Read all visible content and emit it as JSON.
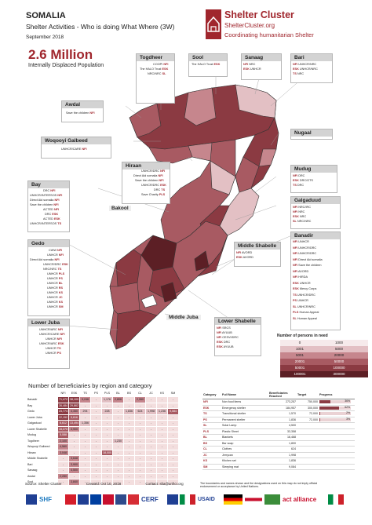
{
  "header": {
    "country": "SOMALIA",
    "subtitle": "Shelter Activities - Who is doing What Where (3W)",
    "date": "September 2018"
  },
  "logo": {
    "name": "Shelter Cluster",
    "url": "ShelterCluster.org",
    "tagline": "Coordinating humanitarian Shelter",
    "color": "#a0262d"
  },
  "headline": {
    "figure": "2.6 Million",
    "label": "Internally Displaced Population"
  },
  "regions": {
    "togdheer": {
      "name": "Togdheer",
      "orgs": [
        {
          "org": "COOPI",
          "cat": "NFI"
        },
        {
          "org": "The HALO Trust",
          "cat": "ESK"
        },
        {
          "org": "NRC/NRC",
          "cat": "SL"
        }
      ]
    },
    "sool": {
      "name": "Sool",
      "orgs": [
        {
          "org": "The HALO Trust",
          "cat": "ESK"
        }
      ]
    },
    "sanaag": {
      "name": "Sanaag",
      "orgs": [
        {
          "org": "NRC",
          "cat": "NFI"
        },
        {
          "org": "UNHCR",
          "cat": "ESK"
        }
      ]
    },
    "bari": {
      "name": "Bari",
      "orgs": [
        {
          "org": "UNHCR/NRC",
          "cat": "NFI"
        },
        {
          "org": "UNHCR/NRC",
          "cat": "ESK"
        },
        {
          "org": "NRC",
          "cat": "TS"
        }
      ]
    },
    "awdal": {
      "name": "Awdal",
      "orgs": [
        {
          "org": "Save the children",
          "cat": "NFI"
        }
      ]
    },
    "woqooyi": {
      "name": "Woqooyi Galbeed",
      "orgs": [
        {
          "org": "UNHCR/CARE",
          "cat": "NFI"
        }
      ]
    },
    "nugaal": {
      "name": "Nugaal",
      "orgs": []
    },
    "hiraan": {
      "name": "Hiraan",
      "orgs": [
        {
          "org": "UNHCR/DRC",
          "cat": "NFI"
        },
        {
          "org": "Direct Aid somalia",
          "cat": "NFI"
        },
        {
          "org": "Save the children",
          "cat": "NFI"
        },
        {
          "org": "UNHCR/DRC",
          "cat": "ESK"
        },
        {
          "org": "DRC",
          "cat": "TS"
        },
        {
          "org": "Save Charity",
          "cat": "PLS"
        }
      ]
    },
    "bay": {
      "name": "Bay",
      "orgs": [
        {
          "org": "DRC",
          "cat": "NFI"
        },
        {
          "org": "UNHCR/INTERSOS",
          "cat": "NFI"
        },
        {
          "org": "Direct Aid somalia",
          "cat": "NFI"
        },
        {
          "org": "Save the children",
          "cat": "NFI"
        },
        {
          "org": "ACTED",
          "cat": "NFI"
        },
        {
          "org": "DRC",
          "cat": "ESK"
        },
        {
          "org": "ACTED",
          "cat": "ESK"
        },
        {
          "org": "UNHCR/INTERSOS",
          "cat": "TS"
        }
      ]
    },
    "bakool": {
      "name": "Bakool",
      "orgs": []
    },
    "gedo": {
      "name": "Gedo",
      "orgs": [
        {
          "org": "CWW",
          "cat": "NFI"
        },
        {
          "org": "UNHCR",
          "cat": "NFI"
        },
        {
          "org": "Direct Aid somalia",
          "cat": "NFI"
        },
        {
          "org": "UNHCR/DRC",
          "cat": "ESK"
        },
        {
          "org": "NRC/NRC",
          "cat": "TS"
        },
        {
          "org": "UNHCR",
          "cat": "PLS"
        },
        {
          "org": "UNHCR",
          "cat": "PS"
        },
        {
          "org": "UNHCR",
          "cat": "BL"
        },
        {
          "org": "UNHCR",
          "cat": "RS"
        },
        {
          "org": "UNHCR",
          "cat": "KS"
        },
        {
          "org": "UNHCR",
          "cat": "JC"
        },
        {
          "org": "UNHCR",
          "cat": "KS"
        },
        {
          "org": "UNHCR",
          "cat": "SM"
        }
      ]
    },
    "lower_juba": {
      "name": "Lower Juba",
      "orgs": [
        {
          "org": "UNHCR/ARC",
          "cat": "NFI"
        },
        {
          "org": "UNHCR/CARE",
          "cat": "NFI"
        },
        {
          "org": "UNHCR",
          "cat": "NFI"
        },
        {
          "org": "UNHCR/ARC",
          "cat": "ESK"
        },
        {
          "org": "UNHCR",
          "cat": "TS"
        },
        {
          "org": "UNHCR",
          "cat": "PS"
        }
      ]
    },
    "mudug": {
      "name": "Mudug",
      "orgs": [
        {
          "org": "DRC",
          "cat": "NFI"
        },
        {
          "org": "DRC/GTS",
          "cat": "ESK"
        },
        {
          "org": "DRC",
          "cat": "TS"
        }
      ]
    },
    "galgaduud": {
      "name": "Galgaduud",
      "orgs": [
        {
          "org": "NRC/IRC",
          "cat": "NFI"
        },
        {
          "org": "NRC",
          "cat": "NFI"
        },
        {
          "org": "NRC",
          "cat": "ESK"
        },
        {
          "org": "NRC/NRC",
          "cat": "SL"
        }
      ]
    },
    "banadir": {
      "name": "Banadir",
      "orgs": [
        {
          "org": "UNHCR",
          "cat": "NFI"
        },
        {
          "org": "UNHCR/DRC",
          "cat": "NFI"
        },
        {
          "org": "UNHCR/DRC",
          "cat": "NFI"
        },
        {
          "org": "Direct Aid somalia",
          "cat": "NFI"
        },
        {
          "org": "Save the children",
          "cat": "NFI"
        },
        {
          "org": "AVORD",
          "cat": "NFI"
        },
        {
          "org": "HIRDA",
          "cat": "NFI"
        },
        {
          "org": "UNHCR",
          "cat": "ESK"
        },
        {
          "org": "Mercy Corps",
          "cat": "ESK"
        },
        {
          "org": "UNHCR/DRC",
          "cat": "TS"
        },
        {
          "org": "UNHCR",
          "cat": "PS"
        },
        {
          "org": "UNHCR/NRC",
          "cat": "SL"
        },
        {
          "org": "Human Appeal",
          "cat": "PLS"
        },
        {
          "org": "Human Appeal",
          "cat": "SL"
        }
      ]
    },
    "middle_shabelle": {
      "name": "Middle Shabelle",
      "orgs": [
        {
          "org": "AVORD",
          "cat": "NFI"
        },
        {
          "org": "AVORD",
          "cat": "ESK"
        }
      ]
    },
    "middle_juba": {
      "name": "Middle Juba",
      "orgs": []
    },
    "lower_shabelle": {
      "name": "Lower Shabelle",
      "orgs": [
        {
          "org": "SRCS",
          "cat": "NFI"
        },
        {
          "org": "AYUUB",
          "cat": "NFI"
        },
        {
          "org": "CESVI/DRC",
          "cat": "NFI"
        },
        {
          "org": "DRC",
          "cat": "ESK"
        },
        {
          "org": "AYUUB",
          "cat": "ESK"
        }
      ]
    }
  },
  "legend": {
    "title": "Number of persons in need",
    "ranges": [
      {
        "lo": "0",
        "hi": "1000",
        "color": "#f6eaeb"
      },
      {
        "lo": "1001",
        "hi": "5000",
        "color": "#e3c0c4"
      },
      {
        "lo": "5001",
        "hi": "20000",
        "color": "#c6868d"
      },
      {
        "lo": "20001",
        "hi": "50000",
        "color": "#a85a62"
      },
      {
        "lo": "50001",
        "hi": "100000",
        "color": "#8b3a42"
      },
      {
        "lo": "100001",
        "hi": "300000",
        "color": "#5c1f25"
      }
    ]
  },
  "beneficiaries": {
    "title": "Number of beneficiaries by region and category",
    "columns": [
      "NFI",
      "ESK",
      "TS",
      "PS",
      "PLS",
      "BL",
      "BS",
      "CL",
      "JC",
      "KS",
      "SM"
    ],
    "rows": [
      {
        "region": "Banadir",
        "values": [
          "71,472",
          "38,100",
          "3,246",
          "",
          "1,176",
          "2,806",
          "",
          "2,060",
          "",
          "",
          ""
        ]
      },
      {
        "region": "Bay",
        "values": [
          "26,484",
          "29,862",
          "",
          "",
          "",
          "",
          "",
          "",
          "",
          "",
          ""
        ]
      },
      {
        "region": "Gedo",
        "values": [
          "23,774",
          "4,350",
          "294",
          "",
          "228",
          "",
          "1,836",
          "624",
          "1,998",
          "1,236",
          "9,084"
        ]
      },
      {
        "region": "Lower Juba",
        "values": [
          "22,152",
          "5,616",
          "",
          "",
          "",
          "",
          "",
          "",
          "",
          "",
          ""
        ]
      },
      {
        "region": "Galgaduud",
        "values": [
          "6,612",
          "13,494",
          "1,356",
          "",
          "",
          "",
          "",
          "",
          "",
          "",
          ""
        ]
      },
      {
        "region": "Lower Shabelle",
        "values": [
          "15,270",
          "3,900",
          "",
          "",
          "",
          "",
          "",
          "",
          "",
          "",
          ""
        ]
      },
      {
        "region": "Mudug",
        "values": [
          "5,088",
          "",
          "",
          "",
          "",
          "",
          "",
          "",
          "",
          "",
          ""
        ]
      },
      {
        "region": "Togdheer",
        "values": [
          "2,100",
          "",
          "",
          "",
          "",
          "1,230",
          "",
          "",
          "",
          "",
          ""
        ]
      },
      {
        "region": "Woqooyi Galbeed",
        "values": [
          "4,560",
          "",
          "",
          "",
          "",
          "",
          "",
          "",
          "",
          "",
          ""
        ]
      },
      {
        "region": "Hiraan",
        "values": [
          "3,048",
          "",
          "",
          "",
          "18,000",
          "",
          "",
          "",
          "",
          "",
          ""
        ]
      },
      {
        "region": "Middle Shabelle",
        "values": [
          "",
          "3,648",
          "",
          "",
          "",
          "",
          "",
          "",
          "",
          "",
          ""
        ]
      },
      {
        "region": "Bari",
        "values": [
          "",
          "3,900",
          "",
          "",
          "",
          "",
          "",
          "",
          "",
          "",
          ""
        ]
      },
      {
        "region": "Sanaag",
        "values": [
          "",
          "4,500",
          "",
          "",
          "",
          "",
          "",
          "",
          "",
          "",
          ""
        ]
      },
      {
        "region": "Awdal",
        "values": [
          "2,280",
          "",
          "",
          "",
          "",
          "",
          "",
          "",
          "",
          "",
          ""
        ]
      },
      {
        "region": "Sool",
        "values": [
          "",
          "3,840",
          "",
          "",
          "",
          "",
          "",
          "",
          "",
          "",
          ""
        ]
      }
    ]
  },
  "categories": {
    "headers": [
      "Category",
      "Full Name",
      "Beneficiaries Reached",
      "Target",
      "Progress"
    ],
    "rows": [
      {
        "code": "NFI",
        "name": "Non food items",
        "reached": "273,257",
        "target": "750,000",
        "progress": 0.36,
        "progress_label": "36%"
      },
      {
        "code": "ESK",
        "name": "Emergency shelter",
        "reached": "184,957",
        "target": "300,000",
        "progress": 0.62,
        "progress_label": "62%"
      },
      {
        "code": "TS",
        "name": "Transitional shelter",
        "reached": "1,570",
        "target": "72,000",
        "progress": 0.02,
        "progress_label": "2%"
      },
      {
        "code": "PS",
        "name": "Permanent shelter",
        "reached": "1,836",
        "target": "72,000",
        "progress": 0.03,
        "progress_label": "3%"
      },
      {
        "code": "SL",
        "name": "Solar Lamp",
        "reached": "4,500",
        "target": "",
        "progress": 0,
        "progress_label": ""
      },
      {
        "code": "PLS",
        "name": "Plastic Sheet",
        "reached": "33,358",
        "target": "",
        "progress": 0,
        "progress_label": ""
      },
      {
        "code": "BL",
        "name": "Blankets",
        "reached": "16,468",
        "target": "",
        "progress": 0,
        "progress_label": ""
      },
      {
        "code": "BS",
        "name": "Bar soap",
        "reached": "1,800",
        "target": "",
        "progress": 0,
        "progress_label": ""
      },
      {
        "code": "CL",
        "name": "Clothes",
        "reached": "624",
        "target": "",
        "progress": 0,
        "progress_label": ""
      },
      {
        "code": "JC",
        "name": "Jerrycan",
        "reached": "1,998",
        "target": "",
        "progress": 0,
        "progress_label": ""
      },
      {
        "code": "KS",
        "name": "Kitchen set",
        "reached": "1,836",
        "target": "",
        "progress": 0,
        "progress_label": ""
      },
      {
        "code": "SM",
        "name": "Sleeping mat",
        "reached": "9,084",
        "target": "",
        "progress": 0,
        "progress_label": ""
      }
    ]
  },
  "footer": {
    "source": "Source: Shelter Cluster",
    "created": "Created: Oct 10, 2018",
    "contact": "Contact: ska@unhcr.org",
    "disclaimer": "The boundaries and names shown and the designations used on this map do not imply official endorsement or acceptance by United Nations.",
    "partners": [
      "SHF",
      "CERF",
      "USAID",
      "act alliance"
    ]
  },
  "colors": {
    "accent": "#a0262d",
    "map_outline": "#333333"
  }
}
